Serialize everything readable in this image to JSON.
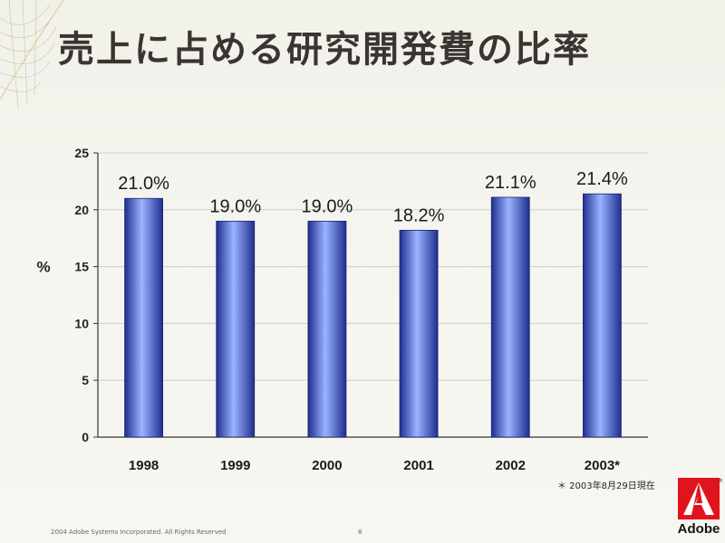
{
  "slide": {
    "title": "売上に占める研究開発費の比率",
    "footnote": "＊ 2003年8月29日現在",
    "copyright": "2004 Adobe Systems Incorporated. All Rights Reserved",
    "page_number": "8",
    "logo_text": "Adobe",
    "logo_reg": "®"
  },
  "colors": {
    "bar_dark": "#1f2d8f",
    "bar_light": "#9ab4ff",
    "title": "#3a3530"
  },
  "chart_data": {
    "type": "bar",
    "title": "売上に占める研究開発費の比率",
    "categories": [
      "1998",
      "1999",
      "2000",
      "2001",
      "2002",
      "2003*"
    ],
    "values": [
      21.0,
      19.0,
      19.0,
      18.2,
      21.1,
      21.4
    ],
    "data_labels": [
      "21.0%",
      "19.0%",
      "19.0%",
      "18.2%",
      "21.1%",
      "21.4%"
    ],
    "ylabel": "%",
    "xlabel": "",
    "ylim": [
      0,
      25
    ],
    "yticks": [
      0,
      5,
      10,
      15,
      20,
      25
    ],
    "grid": true
  }
}
